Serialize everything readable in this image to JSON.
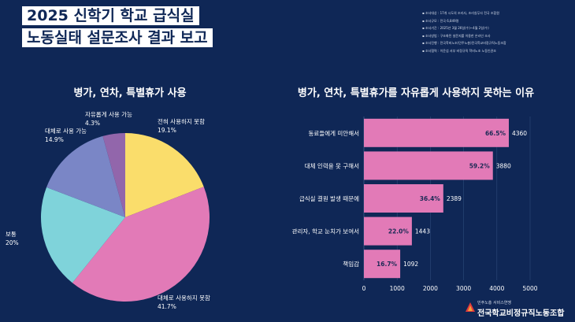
{
  "header": {
    "title_line1": "2025 신학기 학교 급식실",
    "title_line2": "노동실태 설문조사 결과 보고",
    "info": [
      "조사대상 : 17개 시도의 조리사, 조리실무사 전국 조합원",
      "조사규모 : 전국 6,849명",
      "조사기간 : 2025년 3월 26일(수)~4월 2일(수)",
      "조사방법 : 구조화된 설문지를 이용한 온라인 조사",
      "조사진행 : 전국학비노조(민주노총)전국학교비정규직노동조합",
      "조사협력 : 이윤섭 서부 비정규직 학비노조 노동인권조"
    ]
  },
  "pie_chart_title": "병가, 연차, 특별휴가 사용",
  "bar_chart_title": "병가, 연차, 특별휴가를 자유롭게 사용하지 못하는 이유",
  "chart_data": [
    {
      "type": "pie",
      "title": "병가, 연차, 특별휴가 사용",
      "slices": [
        {
          "label": "전혀 사용하지 못함",
          "value": 19.1,
          "display": "19.1%",
          "color": "#fadd6b"
        },
        {
          "label": "대체로 사용하지 못함",
          "value": 41.7,
          "display": "41.7%",
          "color": "#e27ab7"
        },
        {
          "label": "보통",
          "value": 20,
          "display": "20%",
          "color": "#7fd3da"
        },
        {
          "label": "대체로 사용 가능",
          "value": 14.9,
          "display": "14.9%",
          "color": "#7a86c6"
        },
        {
          "label": "자유롭게 사용 가능",
          "value": 4.3,
          "display": "4.3%",
          "color": "#9266ab"
        }
      ]
    },
    {
      "type": "bar",
      "orientation": "horizontal",
      "title": "병가, 연차, 특별휴가를 자유롭게 사용하지 못하는 이유",
      "categories": [
        "동료들에게 미안해서",
        "대체 인력을 못 구해서",
        "급식실 결원 발생 때문에",
        "관리자, 학교 눈치가 보여서",
        "책임감"
      ],
      "values": [
        4360,
        3880,
        2389,
        1443,
        1092
      ],
      "percent_labels": [
        "66.5%",
        "59.2%",
        "36.4%",
        "22.0%",
        "16.7%"
      ],
      "xlim": [
        0,
        5000
      ],
      "xticks": [
        0,
        1000,
        2000,
        3000,
        4000,
        5000
      ],
      "grid": true,
      "bar_color": "#e27ab7"
    }
  ],
  "footer": {
    "sub": "민주노총 서비스연맹",
    "name": "전국학교비정규직노동조합"
  }
}
